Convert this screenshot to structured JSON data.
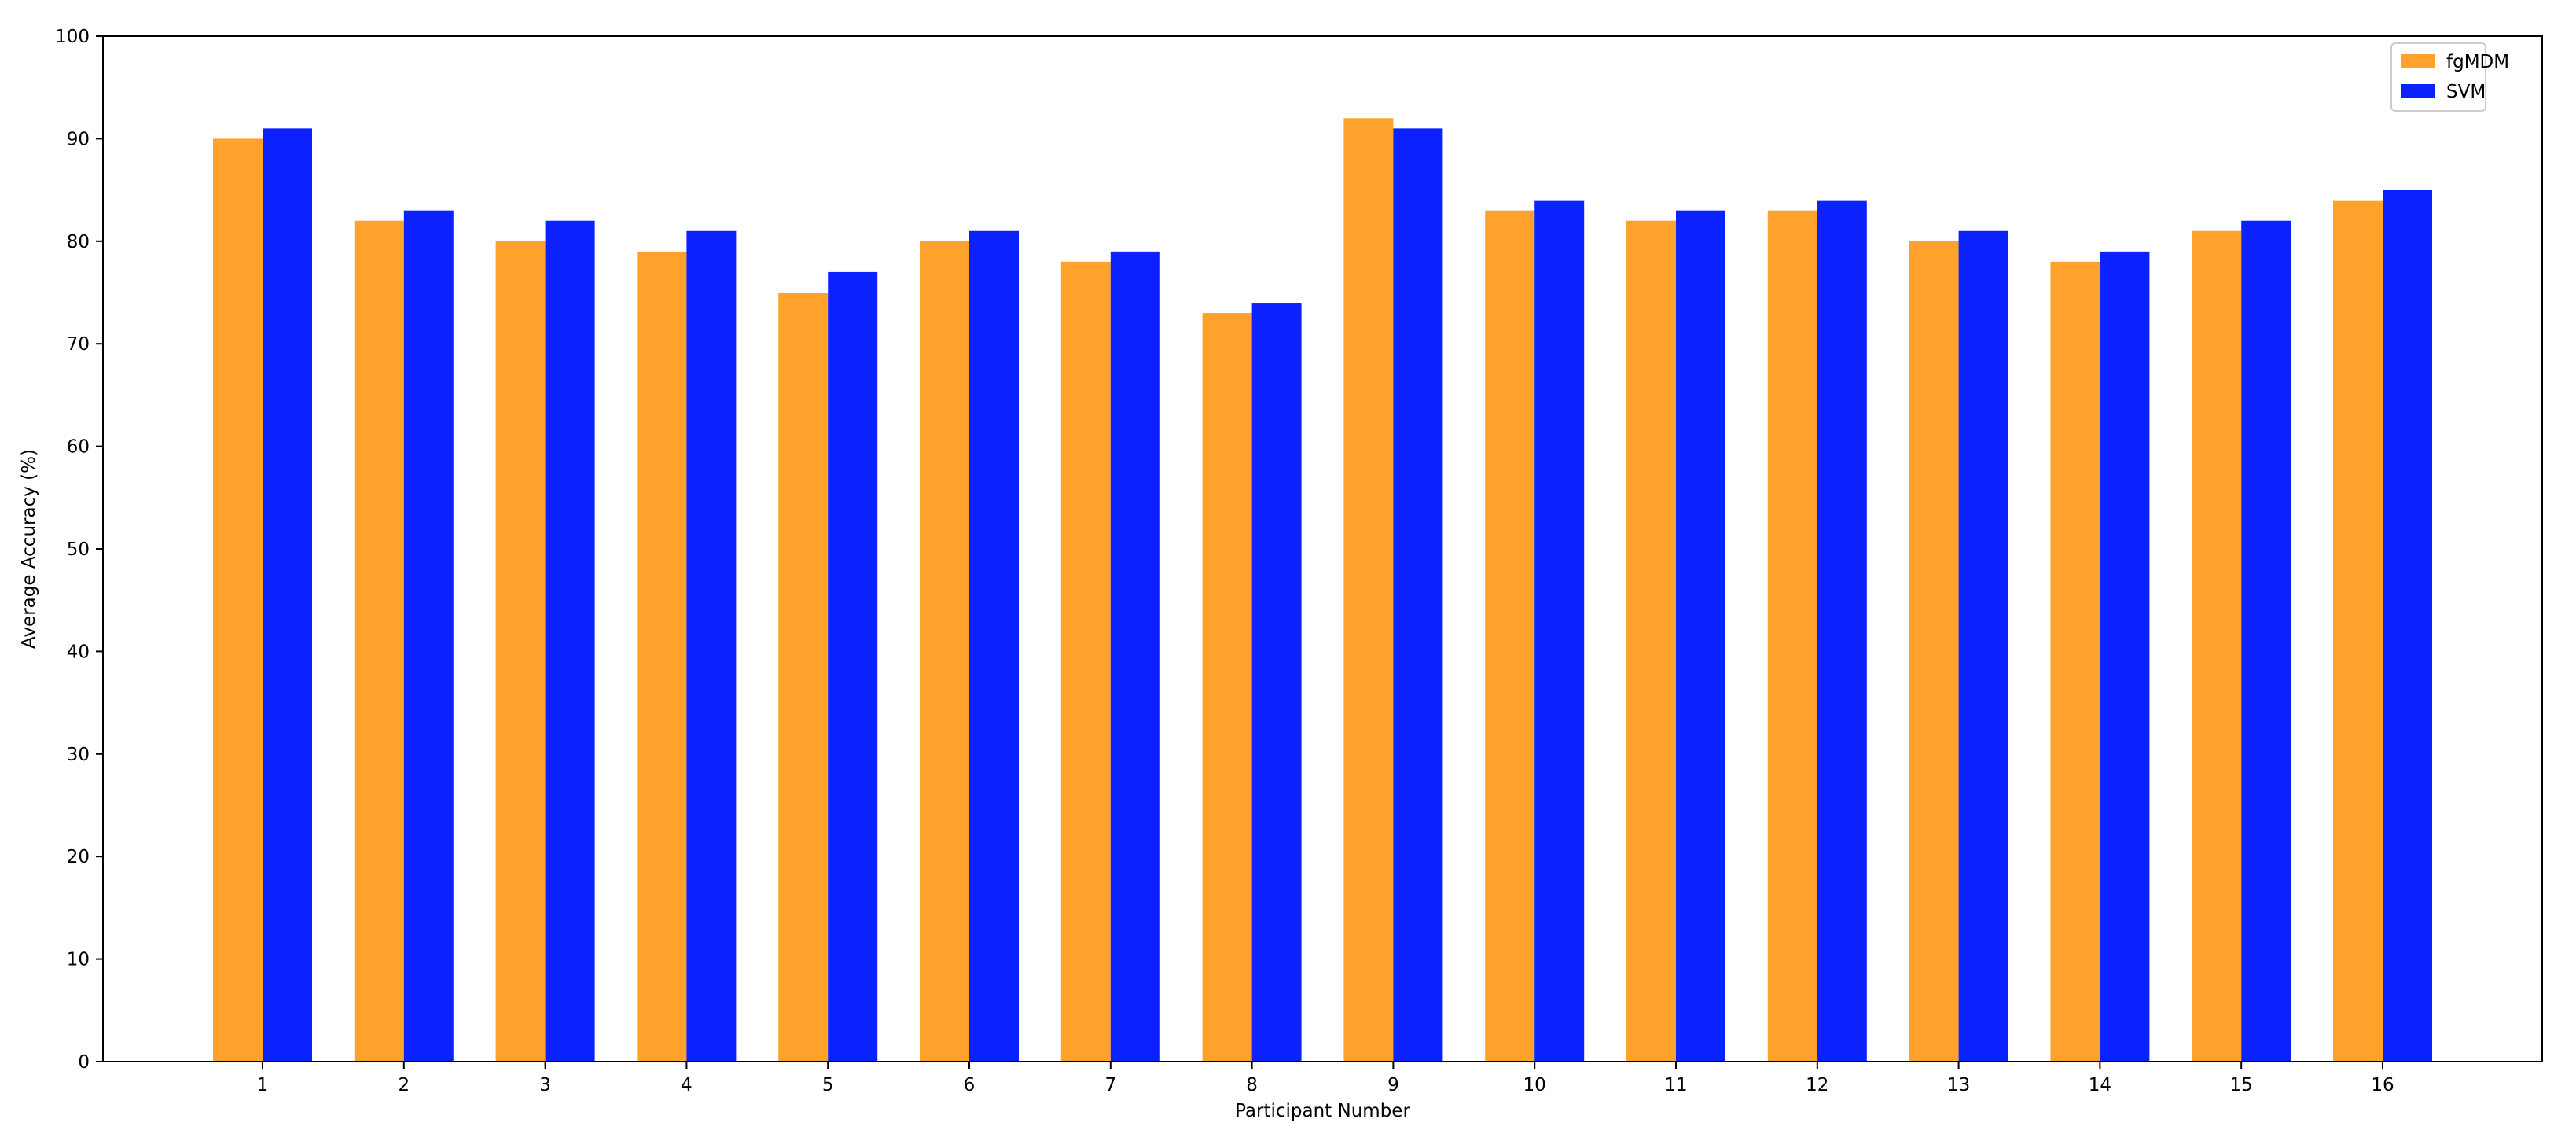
{
  "chart_data": {
    "type": "bar",
    "title": "",
    "xlabel": "Participant Number",
    "ylabel": "Average Accuracy (%)",
    "categories": [
      "1",
      "2",
      "3",
      "4",
      "5",
      "6",
      "7",
      "8",
      "9",
      "10",
      "11",
      "12",
      "13",
      "14",
      "15",
      "16"
    ],
    "series": [
      {
        "name": "fgMDM",
        "color": "#ffa22c",
        "values": [
          90,
          82,
          80,
          79,
          75,
          80,
          78,
          73,
          92,
          83,
          82,
          83,
          80,
          78,
          81,
          84
        ]
      },
      {
        "name": "SVM",
        "color": "#0b22ff",
        "values": [
          91,
          83,
          82,
          81,
          77,
          81,
          79,
          74,
          91,
          84,
          83,
          84,
          81,
          79,
          82,
          85
        ]
      }
    ],
    "ylim": [
      0,
      100
    ],
    "yticks": [
      "0",
      "10",
      "20",
      "30",
      "40",
      "50",
      "60",
      "70",
      "80",
      "90",
      "100"
    ],
    "grid": false,
    "legend_position": "top-right"
  }
}
